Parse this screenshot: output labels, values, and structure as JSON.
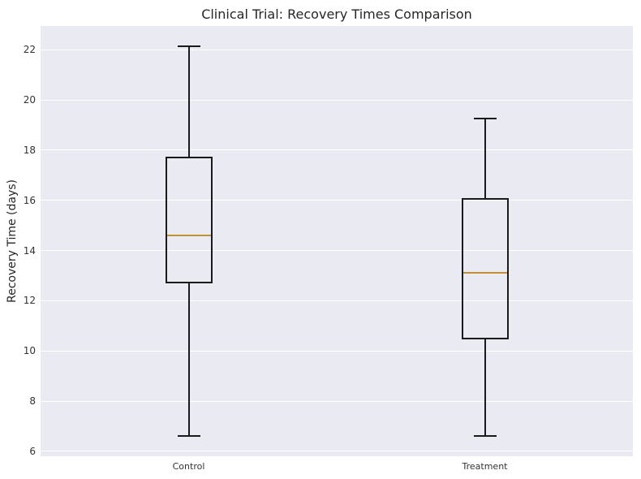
{
  "title": "Clinical Trial: Recovery Times Comparison",
  "y_axis_label": "Recovery Time (days)",
  "colors": {
    "figure_bg": "#ffffff",
    "axes_bg": "#eaeaf2",
    "gridline": "#ffffff",
    "box_edge": "#1a1a1a",
    "median": "#c3922e",
    "title_text": "#262626",
    "tick_text": "#333333"
  },
  "chart_data": {
    "type": "boxplot",
    "title": "Clinical Trial: Recovery Times Comparison",
    "xlabel": "",
    "ylabel": "Recovery Time (days)",
    "categories": [
      "Control",
      "Treatment"
    ],
    "yticks": [
      6,
      8,
      10,
      12,
      14,
      16,
      18,
      20,
      22
    ],
    "ylim": [
      5.8,
      22.95
    ],
    "grid": "horizontal",
    "legend": "none",
    "series": [
      {
        "name": "Control",
        "whisker_low": 6.6,
        "q1": 12.7,
        "median": 14.6,
        "q3": 17.75,
        "whisker_high": 22.15
      },
      {
        "name": "Treatment",
        "whisker_low": 6.6,
        "q1": 10.45,
        "median": 13.1,
        "q3": 16.1,
        "whisker_high": 19.25
      }
    ]
  }
}
